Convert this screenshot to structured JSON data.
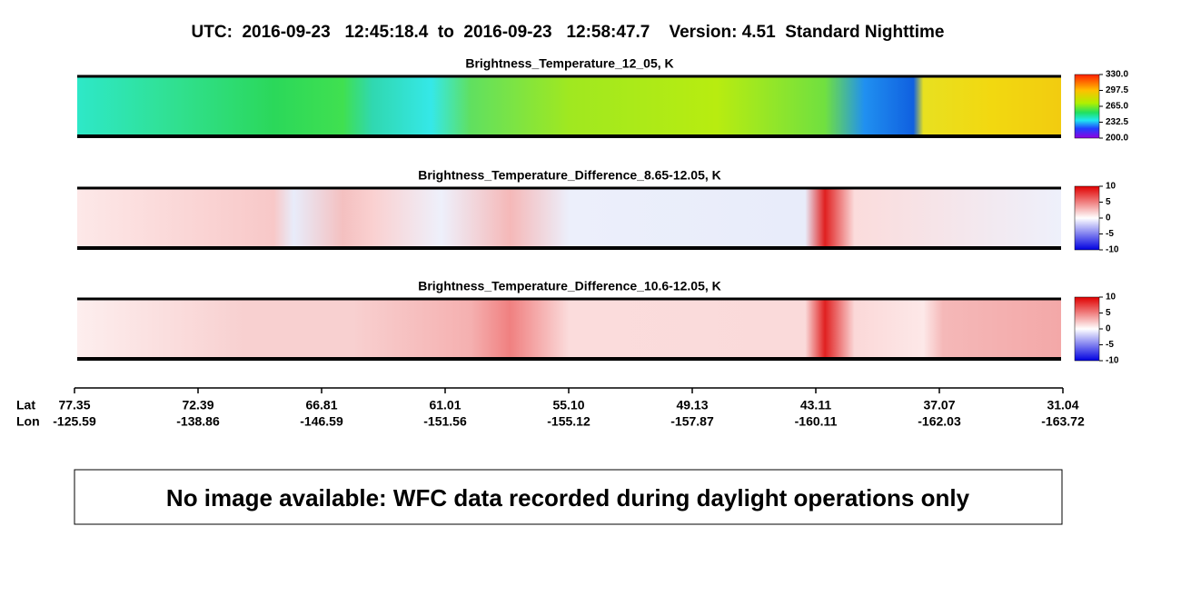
{
  "header": {
    "title": "UTC:  2016-09-23   12:45:18.4  to  2016-09-23   12:58:47.7    Version: 4.51  Standard Nighttime"
  },
  "panels": [
    {
      "title": "Brightness_Temperature_12_05, K",
      "colorbar": {
        "lim": [
          200,
          330
        ],
        "ticks": [
          {
            "value": 330,
            "label": "330.0"
          },
          {
            "value": 297.5,
            "label": "297.5"
          },
          {
            "value": 265,
            "label": "265.0"
          },
          {
            "value": 232.5,
            "label": "232.5"
          },
          {
            "value": 200,
            "label": "200.0"
          }
        ]
      }
    },
    {
      "title": "Brightness_Temperature_Difference_8.65-12.05, K",
      "colorbar": {
        "lim": [
          -10,
          10
        ],
        "ticks": [
          10,
          5,
          0,
          -5,
          -10
        ]
      }
    },
    {
      "title": "Brightness_Temperature_Difference_10.6-12.05, K",
      "colorbar": {
        "lim": [
          -10,
          10
        ],
        "ticks": [
          10,
          5,
          0,
          -5,
          -10
        ]
      }
    }
  ],
  "axis": {
    "row_labels": [
      "Lat",
      "Lon"
    ],
    "ticks": [
      {
        "lat": "77.35",
        "lon": "-125.59"
      },
      {
        "lat": "72.39",
        "lon": "-138.86"
      },
      {
        "lat": "66.81",
        "lon": "-146.59"
      },
      {
        "lat": "61.01",
        "lon": "-151.56"
      },
      {
        "lat": "55.10",
        "lon": "-155.12"
      },
      {
        "lat": "49.13",
        "lon": "-157.87"
      },
      {
        "lat": "43.11",
        "lon": "-160.11"
      },
      {
        "lat": "37.07",
        "lon": "-162.03"
      },
      {
        "lat": "31.04",
        "lon": "-163.72"
      }
    ]
  },
  "message": "No image available: WFC data recorded during daylight operations only"
}
